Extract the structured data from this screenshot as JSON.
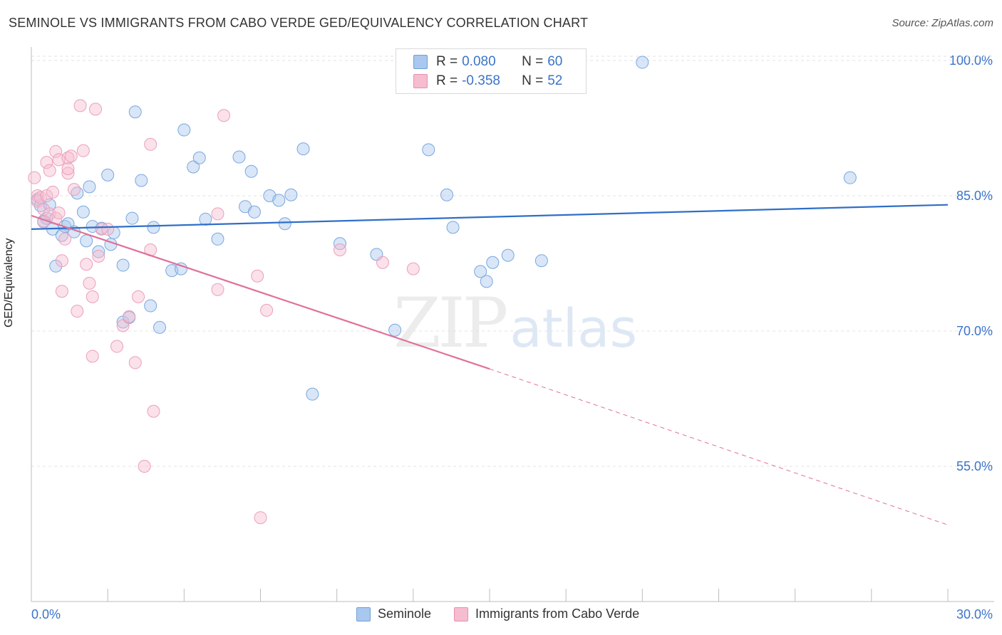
{
  "title": "SEMINOLE VS IMMIGRANTS FROM CABO VERDE GED/EQUIVALENCY CORRELATION CHART",
  "source": "Source: ZipAtlas.com",
  "watermark": {
    "zip": "ZIP",
    "atlas": "atlas"
  },
  "legend": {
    "seminole": {
      "r_label": "R =",
      "r_value": "0.080",
      "n_label": "N =",
      "n_value": "60"
    },
    "caboverde": {
      "r_label": "R =",
      "r_value": "-0.358",
      "n_label": "N =",
      "n_value": "52"
    }
  },
  "bottom_legend": {
    "seminole": "Seminole",
    "caboverde": "Immigrants from Cabo Verde"
  },
  "colors": {
    "blue_fill": "#a9c8ef",
    "blue_stroke": "#6f9fd8",
    "blue_line": "#2f6fc8",
    "pink_fill": "#f6bcd0",
    "pink_stroke": "#e890ad",
    "pink_line": "#e0709a",
    "tick_text": "#3a74c9"
  },
  "chart_data": {
    "type": "scatter",
    "title": "SEMINOLE VS IMMIGRANTS FROM CABO VERDE GED/EQUIVALENCY CORRELATION CHART",
    "xlabel": "",
    "ylabel": "GED/Equivalency",
    "xlim": [
      0,
      30
    ],
    "ylim": [
      40,
      101.5
    ],
    "x_tick_labels": [
      "0.0%",
      "30.0%"
    ],
    "y_ticks": [
      55,
      70,
      85,
      100
    ],
    "y_tick_labels": [
      "55.0%",
      "70.0%",
      "85.0%",
      "100.0%"
    ],
    "grid": true,
    "legend_position": "top-center",
    "series": [
      {
        "name": "Seminole",
        "color": "#a9c8ef",
        "trend": {
          "x": [
            0,
            30
          ],
          "y": [
            81.3,
            84.0
          ]
        },
        "points": [
          [
            0.2,
            84.6
          ],
          [
            0.3,
            83.9
          ],
          [
            0.4,
            82.2
          ],
          [
            0.5,
            82.5
          ],
          [
            0.6,
            84.0
          ],
          [
            0.7,
            81.3
          ],
          [
            0.8,
            77.2
          ],
          [
            1.0,
            80.6
          ],
          [
            1.1,
            81.6
          ],
          [
            1.2,
            81.9
          ],
          [
            1.4,
            81.0
          ],
          [
            1.5,
            85.3
          ],
          [
            1.7,
            83.2
          ],
          [
            1.8,
            80.0
          ],
          [
            1.9,
            86.0
          ],
          [
            2.0,
            81.6
          ],
          [
            2.2,
            78.8
          ],
          [
            2.3,
            81.4
          ],
          [
            2.5,
            87.3
          ],
          [
            2.6,
            79.6
          ],
          [
            2.7,
            80.9
          ],
          [
            3.0,
            71.0
          ],
          [
            3.0,
            77.3
          ],
          [
            3.2,
            71.5
          ],
          [
            3.3,
            82.5
          ],
          [
            3.4,
            94.3
          ],
          [
            3.6,
            86.7
          ],
          [
            3.9,
            72.8
          ],
          [
            4.0,
            81.5
          ],
          [
            4.2,
            70.4
          ],
          [
            4.6,
            76.7
          ],
          [
            4.9,
            76.9
          ],
          [
            5.0,
            92.3
          ],
          [
            5.3,
            88.2
          ],
          [
            5.5,
            89.2
          ],
          [
            5.7,
            82.4
          ],
          [
            6.1,
            80.2
          ],
          [
            6.8,
            89.3
          ],
          [
            7.0,
            83.8
          ],
          [
            7.2,
            87.7
          ],
          [
            7.3,
            83.2
          ],
          [
            7.8,
            85.0
          ],
          [
            8.1,
            84.5
          ],
          [
            8.3,
            81.9
          ],
          [
            8.5,
            85.1
          ],
          [
            8.9,
            90.2
          ],
          [
            9.2,
            63.0
          ],
          [
            10.1,
            79.7
          ],
          [
            11.3,
            78.5
          ],
          [
            11.9,
            70.1
          ],
          [
            13.0,
            90.1
          ],
          [
            13.6,
            85.1
          ],
          [
            13.8,
            81.5
          ],
          [
            14.7,
            76.6
          ],
          [
            14.9,
            75.5
          ],
          [
            15.1,
            77.6
          ],
          [
            15.6,
            78.4
          ],
          [
            16.7,
            77.8
          ],
          [
            20.0,
            99.8
          ],
          [
            26.8,
            87.0
          ]
        ]
      },
      {
        "name": "Immigrants from Cabo Verde",
        "color": "#f6bcd0",
        "trend": {
          "x": [
            0,
            15
          ],
          "y": [
            82.8,
            65.8
          ]
        },
        "trend_dashed": {
          "x": [
            15,
            30
          ],
          "y": [
            65.8,
            48.5
          ]
        },
        "points": [
          [
            0.1,
            87.0
          ],
          [
            0.2,
            85.0
          ],
          [
            0.2,
            84.4
          ],
          [
            0.3,
            84.8
          ],
          [
            0.4,
            83.5
          ],
          [
            0.4,
            82.1
          ],
          [
            0.5,
            85.0
          ],
          [
            0.5,
            88.7
          ],
          [
            0.6,
            83.0
          ],
          [
            0.6,
            87.8
          ],
          [
            0.7,
            85.4
          ],
          [
            0.8,
            89.9
          ],
          [
            0.8,
            82.5
          ],
          [
            0.9,
            83.1
          ],
          [
            0.9,
            89.0
          ],
          [
            1.0,
            74.4
          ],
          [
            1.0,
            77.8
          ],
          [
            1.1,
            80.2
          ],
          [
            1.2,
            87.5
          ],
          [
            1.2,
            88.0
          ],
          [
            1.2,
            89.2
          ],
          [
            1.3,
            89.4
          ],
          [
            1.4,
            85.7
          ],
          [
            1.5,
            72.2
          ],
          [
            1.6,
            95.0
          ],
          [
            1.7,
            90.0
          ],
          [
            1.8,
            77.4
          ],
          [
            1.9,
            75.3
          ],
          [
            2.0,
            73.8
          ],
          [
            2.0,
            67.2
          ],
          [
            2.1,
            94.6
          ],
          [
            2.2,
            78.3
          ],
          [
            2.3,
            81.3
          ],
          [
            2.5,
            81.3
          ],
          [
            2.8,
            68.3
          ],
          [
            3.0,
            70.6
          ],
          [
            3.2,
            71.6
          ],
          [
            3.4,
            66.5
          ],
          [
            3.5,
            73.8
          ],
          [
            3.7,
            55.0
          ],
          [
            3.9,
            79.0
          ],
          [
            3.9,
            90.7
          ],
          [
            4.0,
            61.1
          ],
          [
            6.1,
            83.0
          ],
          [
            6.1,
            74.6
          ],
          [
            6.3,
            93.9
          ],
          [
            7.4,
            76.1
          ],
          [
            7.5,
            49.3
          ],
          [
            7.7,
            72.3
          ],
          [
            10.1,
            79.0
          ],
          [
            11.5,
            77.6
          ],
          [
            12.5,
            76.9
          ]
        ]
      }
    ]
  }
}
